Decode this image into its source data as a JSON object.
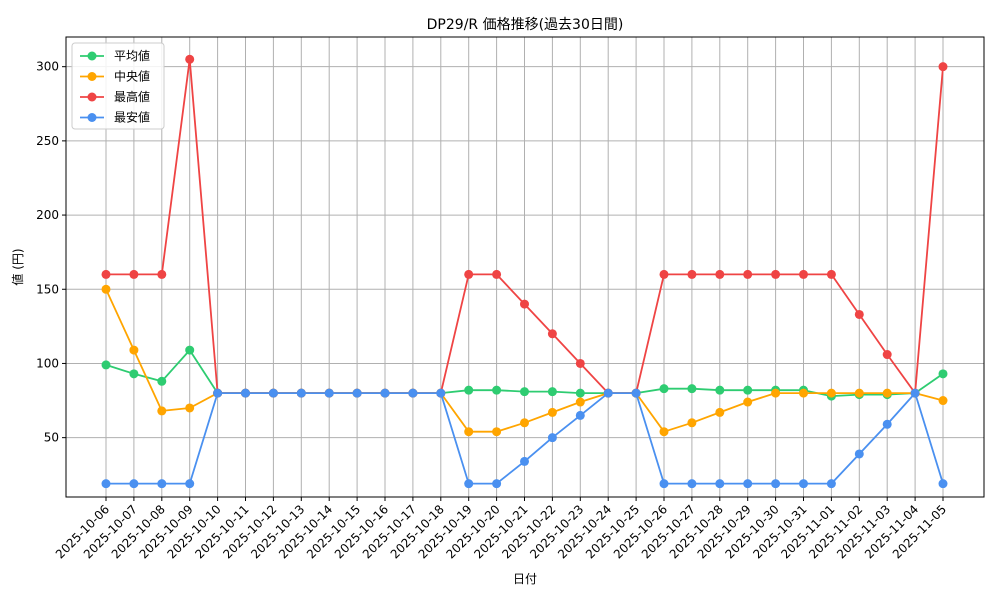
{
  "chart_data": {
    "type": "line",
    "title": "DP29/R 価格推移(過去30日間)",
    "xlabel": "日付",
    "ylabel": "値 (円)",
    "ylim": [
      10,
      320
    ],
    "yticks": [
      50,
      100,
      150,
      200,
      250,
      300
    ],
    "grid": true,
    "legend_position": "top-left",
    "categories": [
      "2025-10-06",
      "2025-10-07",
      "2025-10-08",
      "2025-10-09",
      "2025-10-10",
      "2025-10-11",
      "2025-10-12",
      "2025-10-13",
      "2025-10-14",
      "2025-10-15",
      "2025-10-16",
      "2025-10-17",
      "2025-10-18",
      "2025-10-19",
      "2025-10-20",
      "2025-10-21",
      "2025-10-22",
      "2025-10-23",
      "2025-10-24",
      "2025-10-25",
      "2025-10-26",
      "2025-10-27",
      "2025-10-28",
      "2025-10-29",
      "2025-10-30",
      "2025-10-31",
      "2025-11-01",
      "2025-11-02",
      "2025-11-03",
      "2025-11-04",
      "2025-11-05"
    ],
    "series": [
      {
        "name": "平均値",
        "color": "#2ecc71",
        "values": [
          99,
          93,
          88,
          109,
          80,
          80,
          80,
          80,
          80,
          80,
          80,
          80,
          80,
          82,
          82,
          81,
          81,
          80,
          80,
          80,
          83,
          83,
          82,
          82,
          82,
          82,
          78,
          79,
          79,
          80,
          93
        ]
      },
      {
        "name": "中央値",
        "color": "#ffa500",
        "values": [
          150,
          109,
          68,
          70,
          80,
          80,
          80,
          80,
          80,
          80,
          80,
          80,
          80,
          54,
          54,
          60,
          67,
          74,
          80,
          80,
          54,
          60,
          67,
          74,
          80,
          80,
          80,
          80,
          80,
          80,
          75
        ]
      },
      {
        "name": "最高値",
        "color": "#ef4444",
        "values": [
          160,
          160,
          160,
          305,
          80,
          80,
          80,
          80,
          80,
          80,
          80,
          80,
          80,
          160,
          160,
          140,
          120,
          100,
          80,
          80,
          160,
          160,
          160,
          160,
          160,
          160,
          160,
          133,
          106,
          80,
          300
        ]
      },
      {
        "name": "最安値",
        "color": "#4a90f0",
        "values": [
          19,
          19,
          19,
          19,
          80,
          80,
          80,
          80,
          80,
          80,
          80,
          80,
          80,
          19,
          19,
          34,
          50,
          65,
          80,
          80,
          19,
          19,
          19,
          19,
          19,
          19,
          19,
          39,
          59,
          80,
          19
        ]
      }
    ]
  }
}
